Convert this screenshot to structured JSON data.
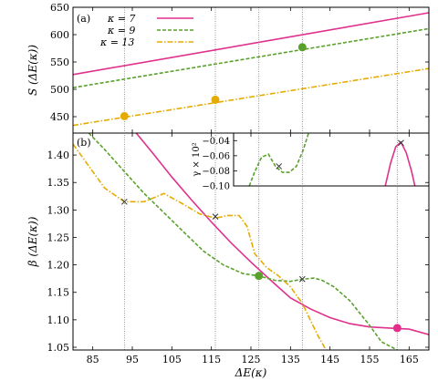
{
  "chart_data": [
    {
      "panel": "(a)",
      "type": "line",
      "ylabel": "S (ΔE(κ))",
      "ylim": [
        420,
        650
      ],
      "xlim": [
        80,
        170
      ],
      "yticks": [
        "450",
        "500",
        "550",
        "600",
        "650"
      ],
      "legend_placement": "top-left",
      "series": [
        {
          "name": "κ = 7",
          "color": "#e0308c",
          "style": "solid",
          "x": [
            80,
            170
          ],
          "y": [
            527,
            640
          ]
        },
        {
          "name": "κ = 9",
          "color": "#5aa02c",
          "style": "dashed",
          "x": [
            80,
            170
          ],
          "y": [
            503,
            611
          ]
        },
        {
          "name": "κ = 13",
          "color": "#e6ab02",
          "style": "dashdot",
          "x": [
            80,
            170
          ],
          "y": [
            434,
            538
          ]
        }
      ],
      "markers": [
        {
          "x": 93,
          "y": 451,
          "color": "#e6ab02"
        },
        {
          "x": 116,
          "y": 481,
          "color": "#e6ab02"
        },
        {
          "x": 138,
          "y": 577,
          "color": "#5aa02c"
        }
      ]
    },
    {
      "panel": "(b)",
      "type": "line",
      "xlabel": "ΔE(κ)",
      "ylabel": "β (ΔE(κ))",
      "xlim": [
        80,
        170
      ],
      "ylim": [
        1.045,
        1.44
      ],
      "xticks": [
        "85",
        "95",
        "105",
        "115",
        "125",
        "135",
        "145",
        "155",
        "165"
      ],
      "yticks": [
        "1.05",
        "1.10",
        "1.15",
        "1.20",
        "1.25",
        "1.30",
        "1.35",
        "1.40"
      ],
      "series": [
        {
          "name": "κ = 7",
          "color": "#e0308c",
          "style": "solid",
          "x": [
            96,
            100,
            105,
            110,
            115,
            120,
            125,
            130,
            135,
            140,
            145,
            150,
            155,
            160,
            165,
            170
          ],
          "y": [
            1.44,
            1.405,
            1.36,
            1.318,
            1.278,
            1.24,
            1.205,
            1.172,
            1.14,
            1.12,
            1.104,
            1.093,
            1.087,
            1.085,
            1.083,
            1.073
          ]
        },
        {
          "name": "κ = 9",
          "color": "#5aa02c",
          "style": "dashed",
          "x": [
            84,
            88,
            93,
            98,
            103,
            108,
            113,
            118,
            123,
            127,
            131,
            135,
            138,
            141,
            143,
            146,
            150,
            155,
            158,
            162
          ],
          "y": [
            1.44,
            1.41,
            1.37,
            1.33,
            1.295,
            1.26,
            1.225,
            1.2,
            1.184,
            1.18,
            1.172,
            1.17,
            1.174,
            1.176,
            1.172,
            1.16,
            1.135,
            1.09,
            1.06,
            1.045
          ]
        },
        {
          "name": "κ = 13",
          "color": "#e6ab02",
          "style": "dashdot",
          "x": [
            80,
            84,
            88,
            93,
            98,
            103,
            108,
            112,
            116,
            119,
            122,
            124,
            126,
            129,
            132,
            135,
            138,
            140,
            142,
            144
          ],
          "y": [
            1.42,
            1.38,
            1.34,
            1.315,
            1.315,
            1.33,
            1.31,
            1.293,
            1.285,
            1.29,
            1.29,
            1.27,
            1.22,
            1.195,
            1.18,
            1.16,
            1.13,
            1.1,
            1.07,
            1.045
          ]
        }
      ],
      "crosses": [
        {
          "x": 93,
          "y": 1.315
        },
        {
          "x": 116,
          "y": 1.288
        },
        {
          "x": 138,
          "y": 1.174
        }
      ],
      "markers": [
        {
          "x": 127,
          "y": 1.18,
          "color": "#5aa02c"
        },
        {
          "x": 162,
          "y": 1.085,
          "color": "#e0308c"
        }
      ],
      "vlines_x": [
        93,
        116,
        127,
        138,
        162
      ]
    },
    {
      "panel": "inset",
      "type": "line",
      "ylabel": "γ × 10²",
      "xlim": [
        114,
        170
      ],
      "ylim": [
        -0.1,
        -0.03
      ],
      "yticks": [
        "−0.04",
        "−0.06",
        "−0.08",
        "−0.10"
      ],
      "series": [
        {
          "name": "κ = 9",
          "color": "#5aa02c",
          "style": "dashed",
          "x": [
            118.5,
            120,
            122,
            124,
            126,
            128,
            130,
            132,
            134,
            135.5
          ],
          "y": [
            -0.1,
            -0.082,
            -0.062,
            -0.058,
            -0.074,
            -0.082,
            -0.082,
            -0.074,
            -0.052,
            -0.03
          ]
        },
        {
          "name": "κ = 7",
          "color": "#e0308c",
          "style": "solid",
          "x": [
            157.5,
            159,
            160.5,
            162,
            163.5,
            165,
            166
          ],
          "y": [
            -0.1,
            -0.07,
            -0.048,
            -0.042,
            -0.056,
            -0.08,
            -0.1
          ]
        }
      ],
      "crosses": [
        {
          "x": 127,
          "y": -0.074
        },
        {
          "x": 162,
          "y": -0.043
        }
      ]
    }
  ]
}
